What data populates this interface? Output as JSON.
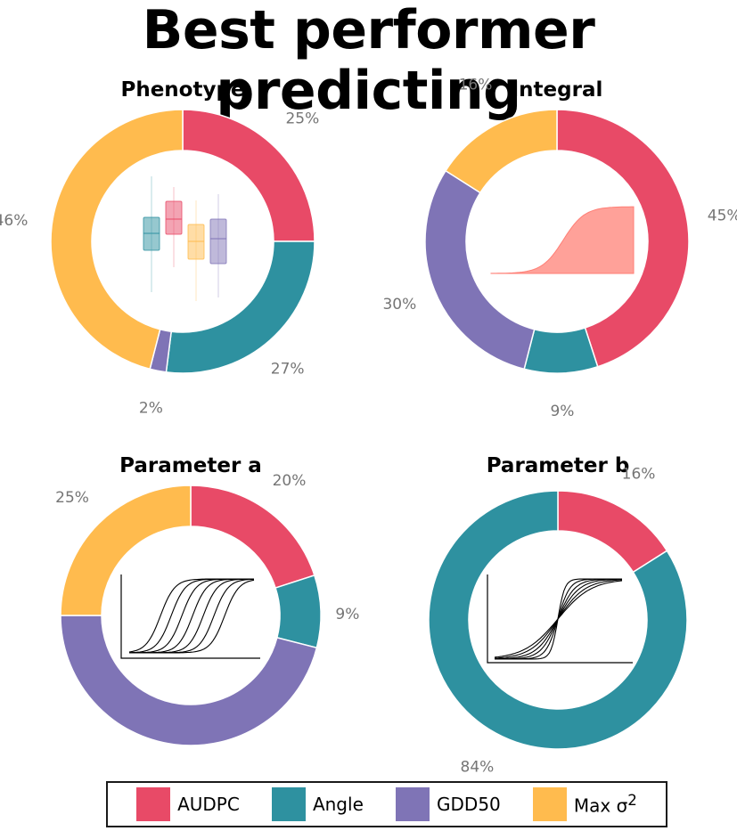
{
  "title": "Best performer predicting",
  "legend": [
    {
      "key": "audpc",
      "html": "AUDPC",
      "color": "#E84A67"
    },
    {
      "key": "angle",
      "html": "Angle",
      "color": "#2E91A0"
    },
    {
      "key": "gdd50",
      "html": "GDD50",
      "color": "#7F74B6"
    },
    {
      "key": "max",
      "html": "Max σ<sup>2</sup>",
      "color": "#FFBB4E"
    }
  ],
  "chart_data": [
    {
      "type": "pie",
      "title": "Phenotype",
      "slices": [
        {
          "label": "AUDPC",
          "value": 25,
          "text": "25%"
        },
        {
          "label": "Angle",
          "value": 27,
          "text": "27%"
        },
        {
          "label": "GDD50",
          "value": 2,
          "text": "2%"
        },
        {
          "label": "Max σ2",
          "value": 46,
          "text": "46%"
        }
      ],
      "inset": "boxplots"
    },
    {
      "type": "pie",
      "title": "Integral",
      "slices": [
        {
          "label": "AUDPC",
          "value": 45,
          "text": "45%"
        },
        {
          "label": "Angle",
          "value": 9,
          "text": "9%"
        },
        {
          "label": "GDD50",
          "value": 30,
          "text": "30%"
        },
        {
          "label": "Max σ2",
          "value": 16,
          "text": "16%"
        }
      ],
      "inset": "area-curve"
    },
    {
      "type": "pie",
      "title": "Parameter a",
      "slices": [
        {
          "label": "AUDPC",
          "value": 20,
          "text": "20%"
        },
        {
          "label": "Angle",
          "value": 9,
          "text": "9%"
        },
        {
          "label": "GDD50",
          "value": 46,
          "text": "46%"
        },
        {
          "label": "Max σ2",
          "value": 25,
          "text": "25%"
        }
      ],
      "inset": "shifted-sigmoids"
    },
    {
      "type": "pie",
      "title": "Parameter b",
      "slices": [
        {
          "label": "AUDPC",
          "value": 16,
          "text": "16%"
        },
        {
          "label": "Angle",
          "value": 84,
          "text": "84%"
        },
        {
          "label": "GDD50",
          "value": 0,
          "text": ""
        },
        {
          "label": "Max σ2",
          "value": 0,
          "text": ""
        }
      ],
      "inset": "steepness-sigmoids"
    }
  ]
}
